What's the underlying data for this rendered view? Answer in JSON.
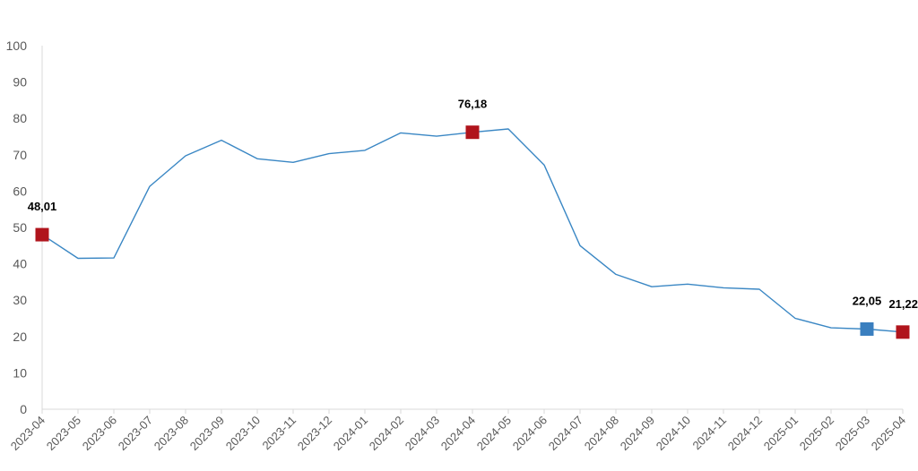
{
  "chart_data": {
    "type": "line",
    "title": "",
    "xlabel": "",
    "ylabel": "",
    "ylim": [
      0,
      100
    ],
    "yticks": [
      0,
      10,
      20,
      30,
      40,
      50,
      60,
      70,
      80,
      90,
      100
    ],
    "grid": false,
    "categories": [
      "2023-04",
      "2023-05",
      "2023-06",
      "2023-07",
      "2023-08",
      "2023-09",
      "2023-10",
      "2023-11",
      "2023-12",
      "2024-01",
      "2024-02",
      "2024-03",
      "2024-04",
      "2024-05",
      "2024-06",
      "2024-07",
      "2024-08",
      "2024-09",
      "2024-10",
      "2024-11",
      "2024-12",
      "2025-01",
      "2025-02",
      "2025-03",
      "2025-04"
    ],
    "series": [
      {
        "values": [
          48.01,
          41.5,
          41.6,
          61.3,
          69.7,
          74.0,
          68.9,
          67.9,
          70.3,
          71.2,
          76.0,
          75.1,
          76.18,
          77.1,
          67.2,
          45.0,
          37.1,
          33.7,
          34.4,
          33.4,
          33.0,
          25.0,
          22.4,
          22.05,
          21.22
        ],
        "color": "#3a87c4"
      }
    ],
    "annotations": [
      {
        "index": 0,
        "label": "48,01",
        "color": "#b0141c"
      },
      {
        "index": 12,
        "label": "76,18",
        "color": "#b0141c"
      },
      {
        "index": 23,
        "label": "22,05",
        "color": "#3a7fbf"
      },
      {
        "index": 24,
        "label": "21,22",
        "color": "#b0141c"
      }
    ],
    "axis_color": "#d9d9d9",
    "tick_color": "#595959"
  }
}
